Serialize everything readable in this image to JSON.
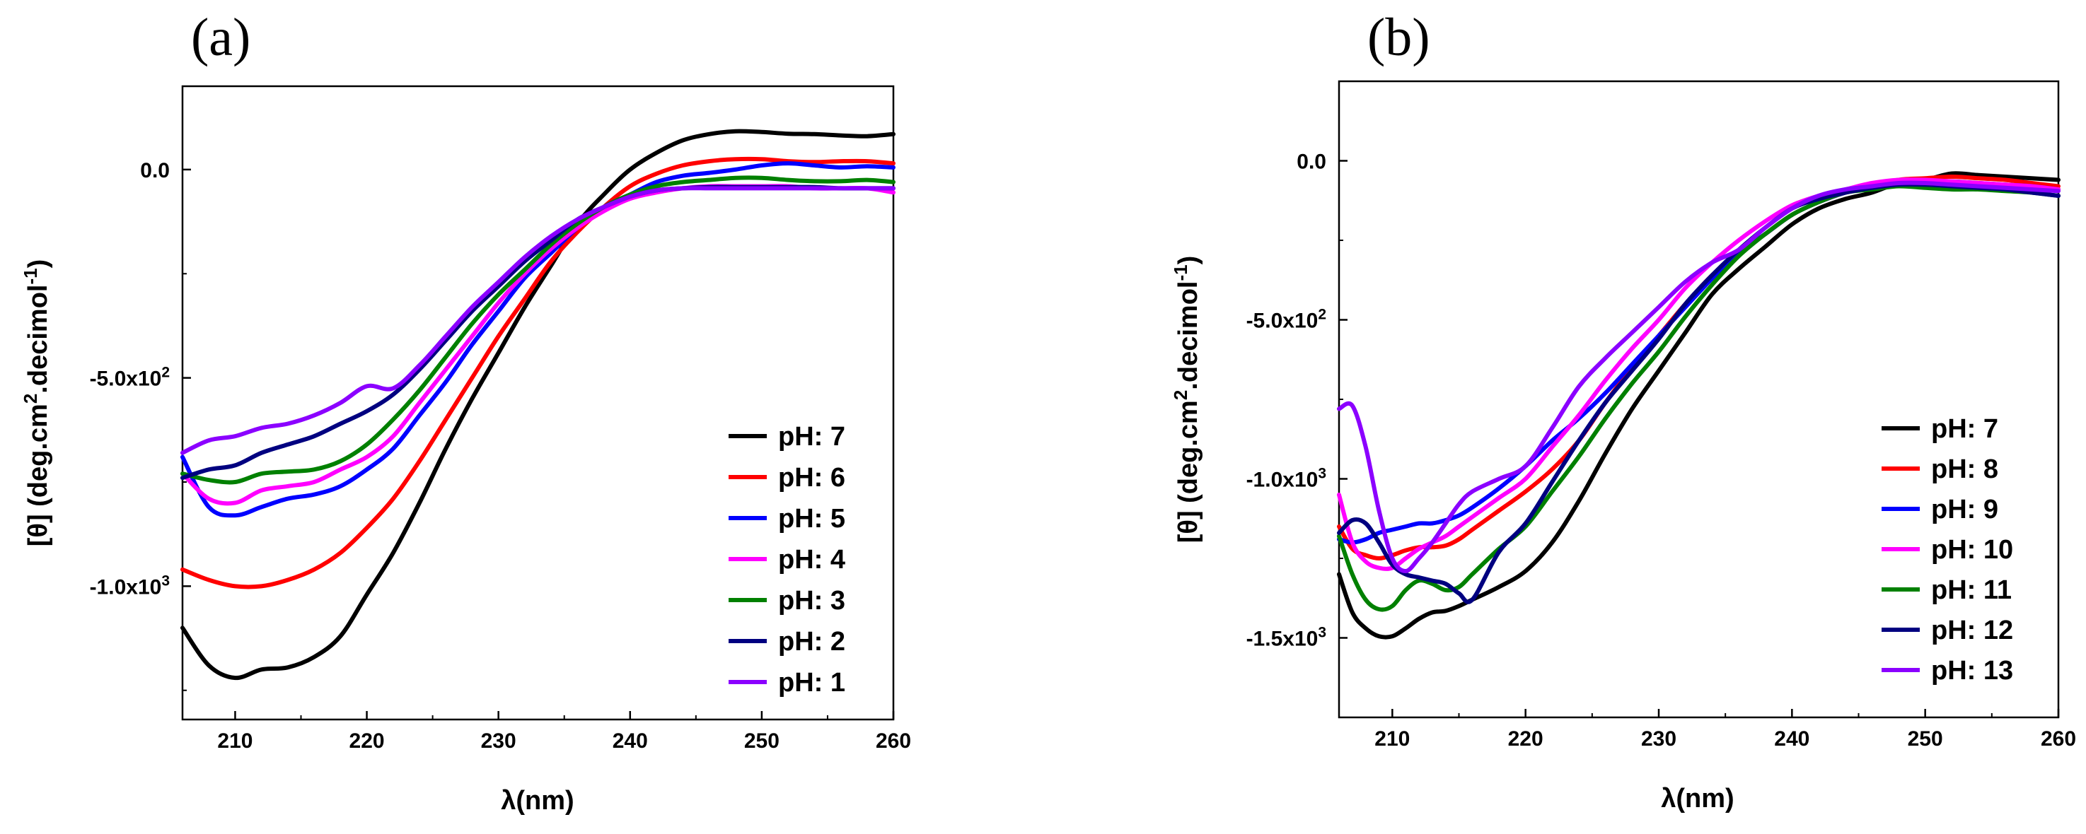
{
  "chart_data": [
    {
      "type": "line",
      "panel_label": "(a)",
      "xlabel": "λ(nm)",
      "ylabel": "[θ] (deg.cm",
      "ylabel_sup1": "2",
      "ylabel_mid": ".decimol",
      "ylabel_sup2": "-1",
      "ylabel_end": ")",
      "xlim": [
        206,
        260
      ],
      "ylim": [
        -1320,
        200
      ],
      "x_ticks": [
        210,
        220,
        230,
        240,
        250,
        260
      ],
      "x_tick_labels": [
        "210",
        "220",
        "230",
        "240",
        "250",
        "260"
      ],
      "y_ticks": [
        0,
        -500,
        -1000
      ],
      "y_tick_labels": [
        {
          "base": "0.0",
          "sup": ""
        },
        {
          "base": "-5.0x10",
          "sup": "2"
        },
        {
          "base": "-1.0x10",
          "sup": "3"
        }
      ],
      "legend_position": "bottom-right",
      "x": [
        206,
        208,
        210,
        212,
        214,
        216,
        218,
        220,
        222,
        224,
        226,
        228,
        230,
        232,
        234,
        236,
        238,
        240,
        242,
        244,
        246,
        248,
        250,
        252,
        254,
        256,
        258,
        260
      ],
      "series": [
        {
          "name": "pH: 7",
          "color": "#000000",
          "values": [
            -1100,
            -1190,
            -1220,
            -1200,
            -1195,
            -1170,
            -1120,
            -1020,
            -920,
            -800,
            -670,
            -550,
            -440,
            -330,
            -230,
            -130,
            -60,
            0,
            40,
            70,
            85,
            92,
            90,
            86,
            85,
            82,
            80,
            85
          ]
        },
        {
          "name": "pH: 6",
          "color": "#ff0000",
          "values": [
            -960,
            -985,
            -1000,
            -1000,
            -985,
            -960,
            -920,
            -860,
            -790,
            -700,
            -600,
            -500,
            -400,
            -310,
            -220,
            -150,
            -90,
            -40,
            -10,
            10,
            20,
            25,
            25,
            20,
            18,
            20,
            20,
            15
          ]
        },
        {
          "name": "pH: 5",
          "color": "#0000ff",
          "values": [
            -690,
            -810,
            -830,
            -810,
            -790,
            -780,
            -760,
            -720,
            -670,
            -590,
            -510,
            -420,
            -340,
            -260,
            -200,
            -140,
            -90,
            -60,
            -30,
            -15,
            -8,
            0,
            10,
            15,
            10,
            5,
            8,
            5
          ]
        },
        {
          "name": "pH: 4",
          "color": "#ff00ff",
          "values": [
            -730,
            -790,
            -800,
            -770,
            -760,
            -750,
            -720,
            -690,
            -640,
            -560,
            -480,
            -400,
            -320,
            -250,
            -190,
            -140,
            -100,
            -70,
            -55,
            -45,
            -40,
            -40,
            -40,
            -40,
            -45,
            -45,
            -45,
            -55
          ]
        },
        {
          "name": "pH: 3",
          "color": "#008000",
          "values": [
            -730,
            -745,
            -750,
            -730,
            -725,
            -720,
            -700,
            -660,
            -600,
            -530,
            -450,
            -370,
            -300,
            -240,
            -180,
            -130,
            -90,
            -60,
            -40,
            -30,
            -25,
            -20,
            -20,
            -25,
            -28,
            -28,
            -25,
            -30
          ]
        },
        {
          "name": "pH: 2",
          "color": "#000080",
          "values": [
            -740,
            -720,
            -710,
            -680,
            -660,
            -640,
            -610,
            -580,
            -540,
            -480,
            -410,
            -340,
            -280,
            -220,
            -170,
            -120,
            -90,
            -65,
            -50,
            -45,
            -42,
            -42,
            -42,
            -42,
            -42,
            -45,
            -45,
            -45
          ]
        },
        {
          "name": "pH: 1",
          "color": "#8b00ff",
          "values": [
            -680,
            -650,
            -640,
            -620,
            -610,
            -590,
            -560,
            -520,
            -525,
            -470,
            -400,
            -330,
            -270,
            -210,
            -160,
            -120,
            -90,
            -65,
            -50,
            -45,
            -45,
            -45,
            -45,
            -45,
            -45,
            -45,
            -45,
            -45
          ]
        }
      ]
    },
    {
      "type": "line",
      "panel_label": "(b)",
      "xlabel": "λ(nm)",
      "ylabel": "[θ] (deg.cm",
      "ylabel_sup1": "2",
      "ylabel_mid": ".decimol",
      "ylabel_sup2": "-1",
      "ylabel_end": ")",
      "xlim": [
        206,
        260
      ],
      "ylim": [
        -1750,
        250
      ],
      "x_ticks": [
        210,
        220,
        230,
        240,
        250,
        260
      ],
      "x_tick_labels": [
        "210",
        "220",
        "230",
        "240",
        "250",
        "260"
      ],
      "y_ticks": [
        0,
        -500,
        -1000,
        -1500
      ],
      "y_tick_labels": [
        {
          "base": "0.0",
          "sup": ""
        },
        {
          "base": "-5.0x10",
          "sup": "2"
        },
        {
          "base": "-1.0x10",
          "sup": "3"
        },
        {
          "base": "-1.5x10",
          "sup": "3"
        }
      ],
      "legend_position": "bottom-right",
      "x": [
        206,
        207,
        208,
        209,
        210,
        211,
        212,
        213,
        214,
        215,
        216,
        218,
        220,
        222,
        224,
        226,
        228,
        230,
        232,
        234,
        236,
        238,
        240,
        242,
        244,
        246,
        248,
        250,
        252,
        254,
        256,
        258,
        260
      ],
      "series": [
        {
          "name": "pH: 7",
          "color": "#000000",
          "values": [
            -1300,
            -1420,
            -1470,
            -1495,
            -1495,
            -1470,
            -1440,
            -1420,
            -1415,
            -1400,
            -1380,
            -1340,
            -1290,
            -1200,
            -1070,
            -920,
            -780,
            -660,
            -540,
            -420,
            -340,
            -270,
            -200,
            -150,
            -120,
            -100,
            -70,
            -60,
            -40,
            -45,
            -50,
            -55,
            -60
          ]
        },
        {
          "name": "pH: 8",
          "color": "#ff0000",
          "values": [
            -1150,
            -1220,
            -1240,
            -1250,
            -1240,
            -1225,
            -1215,
            -1215,
            -1210,
            -1190,
            -1160,
            -1100,
            -1040,
            -970,
            -880,
            -760,
            -650,
            -550,
            -450,
            -360,
            -290,
            -230,
            -170,
            -130,
            -100,
            -80,
            -60,
            -55,
            -50,
            -55,
            -60,
            -70,
            -80
          ]
        },
        {
          "name": "pH: 9",
          "color": "#0000ff",
          "values": [
            -1190,
            -1200,
            -1190,
            -1170,
            -1160,
            -1150,
            -1140,
            -1140,
            -1130,
            -1115,
            -1090,
            -1030,
            -960,
            -880,
            -810,
            -730,
            -640,
            -550,
            -460,
            -370,
            -290,
            -230,
            -170,
            -130,
            -100,
            -80,
            -70,
            -65,
            -65,
            -70,
            -75,
            -80,
            -90
          ]
        },
        {
          "name": "pH: 10",
          "color": "#ff00ff",
          "values": [
            -1050,
            -1200,
            -1260,
            -1280,
            -1280,
            -1250,
            -1220,
            -1200,
            -1180,
            -1150,
            -1120,
            -1060,
            -1000,
            -900,
            -800,
            -690,
            -590,
            -500,
            -400,
            -320,
            -250,
            -190,
            -140,
            -110,
            -90,
            -70,
            -60,
            -60,
            -65,
            -70,
            -75,
            -80,
            -90
          ]
        },
        {
          "name": "pH: 11",
          "color": "#008000",
          "values": [
            -1180,
            -1300,
            -1380,
            -1410,
            -1400,
            -1350,
            -1320,
            -1330,
            -1350,
            -1340,
            -1300,
            -1220,
            -1150,
            -1040,
            -930,
            -810,
            -700,
            -600,
            -490,
            -390,
            -300,
            -230,
            -170,
            -130,
            -100,
            -90,
            -80,
            -85,
            -90,
            -90,
            -95,
            -100,
            -110
          ]
        },
        {
          "name": "pH: 12",
          "color": "#000080",
          "values": [
            -1170,
            -1130,
            -1140,
            -1200,
            -1270,
            -1300,
            -1310,
            -1320,
            -1330,
            -1360,
            -1380,
            -1230,
            -1140,
            -1010,
            -880,
            -760,
            -660,
            -560,
            -450,
            -360,
            -280,
            -210,
            -150,
            -120,
            -100,
            -85,
            -75,
            -75,
            -80,
            -85,
            -90,
            -100,
            -110
          ]
        },
        {
          "name": "pH: 13",
          "color": "#8b00ff",
          "values": [
            -780,
            -770,
            -900,
            -1100,
            -1250,
            -1290,
            -1250,
            -1200,
            -1140,
            -1080,
            -1040,
            -1000,
            -960,
            -840,
            -710,
            -620,
            -540,
            -460,
            -380,
            -320,
            -280,
            -210,
            -150,
            -110,
            -90,
            -80,
            -70,
            -70,
            -75,
            -80,
            -85,
            -90,
            -95
          ]
        }
      ]
    }
  ]
}
